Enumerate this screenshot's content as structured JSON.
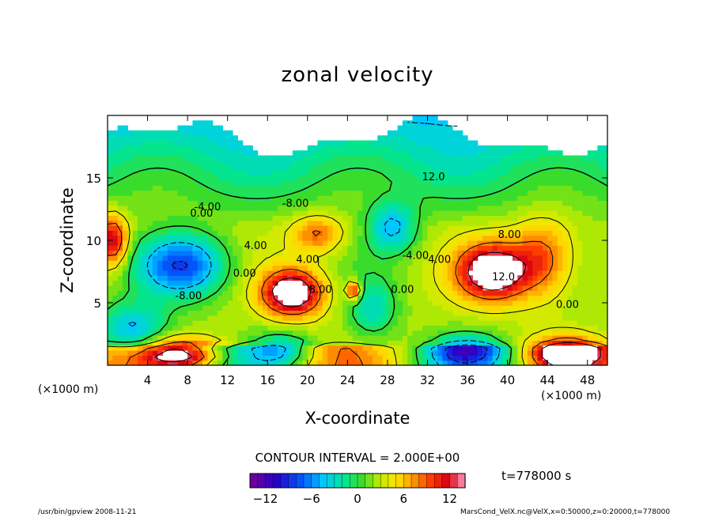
{
  "chart_data": {
    "type": "heatmap",
    "title": "zonal velocity",
    "xlabel": "X-coordinate",
    "ylabel": "Z-coordinate",
    "x_unit": "(×1000 m)",
    "y_unit": "(×1000 m)",
    "xlim": [
      0,
      50
    ],
    "ylim": [
      0,
      20
    ],
    "x_ticks": [
      4,
      8,
      12,
      16,
      20,
      24,
      28,
      32,
      36,
      40,
      44,
      48
    ],
    "y_ticks": [
      5,
      10,
      15
    ],
    "contour_interval_text": "CONTOUR INTERVAL = 2.000E+00",
    "time_text": "t=778000 s",
    "colorbar": {
      "range": [
        -14,
        14
      ],
      "ticks": [
        -12,
        -6,
        0,
        6,
        12
      ],
      "levels": 28
    },
    "contour_labels": [
      {
        "text": "12.0",
        "x": 32.6,
        "z": 14.8
      },
      {
        "text": "-4.00",
        "x": 10.0,
        "z": 12.4
      },
      {
        "text": "0.00",
        "x": 9.4,
        "z": 11.9
      },
      {
        "text": "-8.00",
        "x": 18.8,
        "z": 12.7
      },
      {
        "text": "4.00",
        "x": 14.8,
        "z": 9.3
      },
      {
        "text": "0.00",
        "x": 13.7,
        "z": 7.1
      },
      {
        "text": "-8.00",
        "x": 8.1,
        "z": 5.3
      },
      {
        "text": "4.00",
        "x": 20.0,
        "z": 8.2
      },
      {
        "text": "8.00",
        "x": 21.3,
        "z": 5.8
      },
      {
        "text": "-4.00",
        "x": 30.8,
        "z": 8.5
      },
      {
        "text": "4.00",
        "x": 33.2,
        "z": 8.2
      },
      {
        "text": "0.00",
        "x": 29.5,
        "z": 5.8
      },
      {
        "text": "8.00",
        "x": 40.2,
        "z": 10.2
      },
      {
        "text": "12.0",
        "x": 39.6,
        "z": 6.8
      },
      {
        "text": "0.00",
        "x": 46.0,
        "z": 4.6
      }
    ],
    "features": [
      {
        "x": 18.5,
        "z": 5.8,
        "value": 14,
        "sx": 3.0,
        "sz": 1.8
      },
      {
        "x": 38.5,
        "z": 7.5,
        "value": 14,
        "sx": 3.4,
        "sz": 2.2
      },
      {
        "x": 7.5,
        "z": 0.8,
        "value": 13,
        "sx": 4.0,
        "sz": 1.2
      },
      {
        "x": 24.6,
        "z": 6.0,
        "value": 10,
        "sx": 0.7,
        "sz": 0.8
      },
      {
        "x": 0.5,
        "z": 10.0,
        "value": 10,
        "sx": 1.5,
        "sz": 2.0
      },
      {
        "x": 46.0,
        "z": 1.0,
        "value": 12,
        "sx": 3.5,
        "sz": 1.2
      },
      {
        "x": 43.5,
        "z": 8.5,
        "value": 7,
        "sx": 3.0,
        "sz": 3.0
      },
      {
        "x": 7.5,
        "z": 8.0,
        "value": -10,
        "sx": 4.5,
        "sz": 2.5
      },
      {
        "x": 2.5,
        "z": 3.0,
        "value": -7,
        "sx": 3.5,
        "sz": 2.0
      },
      {
        "x": 28.5,
        "z": 11.0,
        "value": -7,
        "sx": 2.5,
        "sz": 2.0
      },
      {
        "x": 26.5,
        "z": 4.5,
        "value": -5,
        "sx": 2.5,
        "sz": 2.5
      },
      {
        "x": 36.0,
        "z": 1.2,
        "value": -8,
        "sx": 3.5,
        "sz": 1.3
      },
      {
        "x": 17.5,
        "z": 1.2,
        "value": -6,
        "sx": 3.0,
        "sz": 1.3
      },
      {
        "x": 21.0,
        "z": 10.5,
        "value": 6,
        "sx": 2.5,
        "sz": 1.5
      }
    ],
    "undefined_regions": "blank (white) above z≈18 and in upper-left/right patches"
  },
  "footer": {
    "left": "/usr/bin/gpview   2008-11-21",
    "right": "MarsCond_VelX.nc@VelX,x=0:50000,z=0:20000,t=778000"
  }
}
